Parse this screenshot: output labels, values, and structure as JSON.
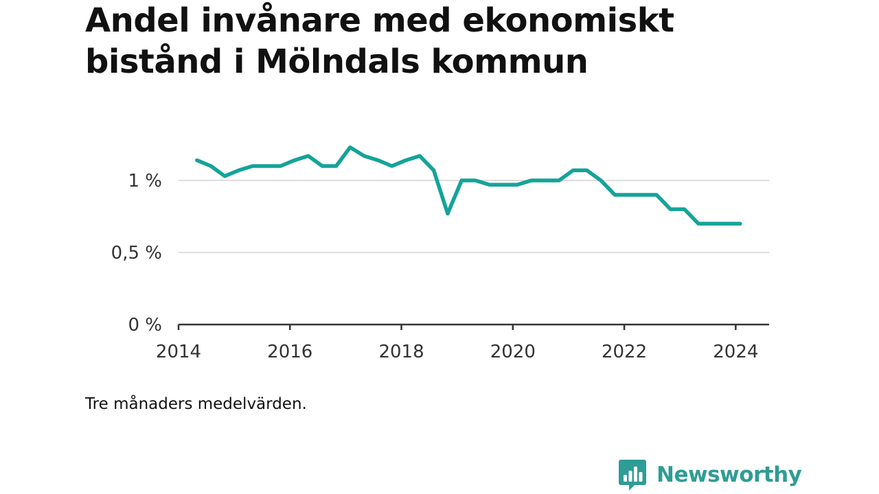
{
  "title": "Andel invånare med ekonomiskt bistånd i Mölndals kommun",
  "note": "Tre månaders medelvärden.",
  "brand": {
    "name": "Newsworthy",
    "icon": "bar-chart-speech-bubble-icon"
  },
  "colors": {
    "line": "#14a39a",
    "grid": "#dddddd",
    "axis": "#333333",
    "brand": "#2f9c95"
  },
  "chart_data": {
    "type": "line",
    "title": "Andel invånare med ekonomiskt bistånd i Mölndals kommun",
    "xlabel": "",
    "ylabel": "",
    "xlim": [
      2014.0,
      2024.6
    ],
    "ylim": [
      0,
      1.3
    ],
    "x_ticks": [
      2014,
      2016,
      2018,
      2020,
      2022,
      2024
    ],
    "x_tick_labels": [
      "2014",
      "2016",
      "2018",
      "2020",
      "2022",
      "2024"
    ],
    "y_ticks": [
      0,
      0.5,
      1
    ],
    "y_tick_labels": [
      "0 %",
      "0,5 %",
      "1 %"
    ],
    "grid": "horizontal",
    "legend": "none",
    "series": [
      {
        "x": [
          2014.33,
          2014.58,
          2014.83,
          2015.08,
          2015.33,
          2015.58,
          2015.83,
          2016.08,
          2016.33,
          2016.58,
          2016.83,
          2017.08,
          2017.33,
          2017.58,
          2017.83,
          2018.08,
          2018.33,
          2018.58,
          2018.83,
          2019.08,
          2019.33,
          2019.58,
          2019.83,
          2020.08,
          2020.33,
          2020.58,
          2020.83,
          2021.08,
          2021.33,
          2021.58,
          2021.83,
          2022.08,
          2022.33,
          2022.58,
          2022.83,
          2023.08,
          2023.33,
          2023.58,
          2023.83,
          2024.08
        ],
        "values": [
          1.14,
          1.1,
          1.03,
          1.07,
          1.1,
          1.1,
          1.1,
          1.14,
          1.17,
          1.1,
          1.1,
          1.23,
          1.17,
          1.14,
          1.1,
          1.14,
          1.17,
          1.07,
          0.77,
          1.0,
          1.0,
          0.97,
          0.97,
          0.97,
          1.0,
          1.0,
          1.0,
          1.07,
          1.07,
          1.0,
          0.9,
          0.9,
          0.9,
          0.9,
          0.8,
          0.8,
          0.7,
          0.7,
          0.7,
          0.7
        ]
      }
    ]
  }
}
